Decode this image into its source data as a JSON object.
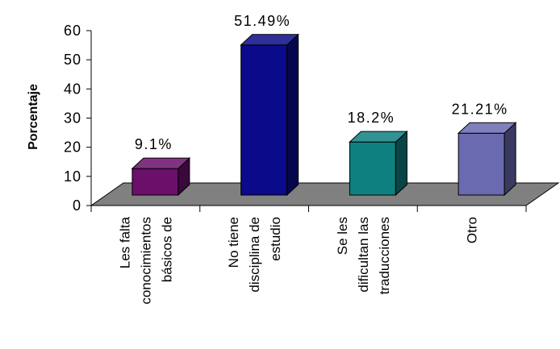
{
  "chart_data": {
    "type": "bar",
    "title": "",
    "xlabel": "",
    "ylabel": "Porcentaje",
    "ylim": [
      0,
      60
    ],
    "yticks": [
      0,
      10,
      20,
      30,
      40,
      50,
      60
    ],
    "grid": false,
    "legend": "none",
    "categories": [
      [
        "Les falta",
        "conocimientos",
        "básicos de"
      ],
      [
        "No tiene",
        "disciplina de",
        "estudio"
      ],
      [
        "Se les",
        "dificultan las",
        "traducciones"
      ],
      [
        "Otro"
      ]
    ],
    "values": [
      9.1,
      51.49,
      18.2,
      21.21
    ],
    "data_labels": [
      "9.1%",
      "51.49%",
      "18.2%",
      "21.21%"
    ],
    "colors": [
      "#6b0f6b",
      "#0a0a8a",
      "#0f8080",
      "#6a6ab0"
    ]
  }
}
